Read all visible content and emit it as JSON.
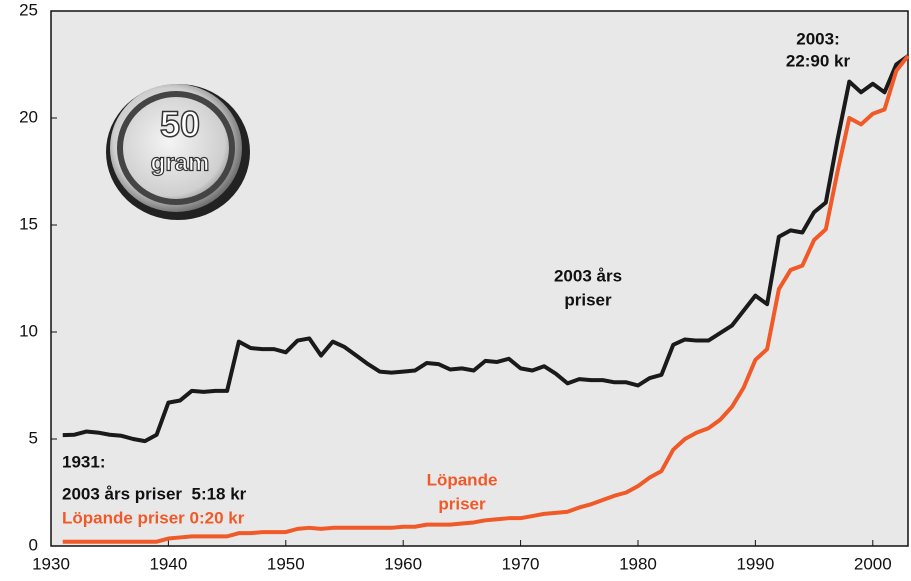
{
  "chart_data": {
    "type": "line",
    "x": [
      1931,
      1932,
      1933,
      1934,
      1935,
      1936,
      1937,
      1938,
      1939,
      1940,
      1941,
      1942,
      1943,
      1944,
      1945,
      1946,
      1947,
      1948,
      1949,
      1950,
      1951,
      1952,
      1953,
      1954,
      1955,
      1956,
      1957,
      1958,
      1959,
      1960,
      1961,
      1962,
      1963,
      1964,
      1965,
      1966,
      1967,
      1968,
      1969,
      1970,
      1971,
      1972,
      1973,
      1974,
      1975,
      1976,
      1977,
      1978,
      1979,
      1980,
      1981,
      1982,
      1983,
      1984,
      1985,
      1986,
      1987,
      1988,
      1989,
      1990,
      1991,
      1992,
      1993,
      1994,
      1995,
      1996,
      1997,
      1998,
      1999,
      2000,
      2001,
      2002,
      2003
    ],
    "series": [
      {
        "name": "2003 års priser",
        "color": "#1a1a1a",
        "values": [
          5.18,
          5.2,
          5.35,
          5.3,
          5.2,
          5.15,
          5.0,
          4.9,
          5.2,
          6.7,
          6.8,
          7.25,
          7.2,
          7.25,
          7.25,
          9.55,
          9.25,
          9.2,
          9.2,
          9.05,
          9.6,
          9.7,
          8.9,
          9.55,
          9.3,
          8.9,
          8.5,
          8.15,
          8.1,
          8.15,
          8.2,
          8.55,
          8.5,
          8.25,
          8.3,
          8.2,
          8.65,
          8.6,
          8.75,
          8.3,
          8.2,
          8.4,
          8.05,
          7.6,
          7.8,
          7.75,
          7.75,
          7.65,
          7.65,
          7.5,
          7.85,
          8.0,
          9.4,
          9.65,
          9.6,
          9.6,
          9.95,
          10.3,
          11.0,
          11.7,
          11.3,
          14.45,
          14.75,
          14.65,
          15.6,
          16.05,
          19.0,
          21.7,
          21.2,
          21.6,
          21.2,
          22.5,
          22.9
        ]
      },
      {
        "name": "Löpande priser",
        "color": "#f05a28",
        "values": [
          0.2,
          0.2,
          0.2,
          0.2,
          0.2,
          0.2,
          0.2,
          0.2,
          0.2,
          0.35,
          0.4,
          0.45,
          0.45,
          0.45,
          0.45,
          0.6,
          0.6,
          0.65,
          0.65,
          0.65,
          0.8,
          0.85,
          0.8,
          0.85,
          0.85,
          0.85,
          0.85,
          0.85,
          0.85,
          0.9,
          0.9,
          1.0,
          1.0,
          1.0,
          1.05,
          1.1,
          1.2,
          1.25,
          1.3,
          1.3,
          1.4,
          1.5,
          1.55,
          1.6,
          1.8,
          1.95,
          2.15,
          2.35,
          2.5,
          2.8,
          3.2,
          3.5,
          4.5,
          5.0,
          5.3,
          5.5,
          5.9,
          6.5,
          7.4,
          8.7,
          9.2,
          12.0,
          12.9,
          13.1,
          14.3,
          14.8,
          17.5,
          20.0,
          19.7,
          20.2,
          20.4,
          22.2,
          22.9
        ]
      }
    ],
    "xlim": [
      1930,
      2003
    ],
    "xticks": [
      1930,
      1940,
      1950,
      1960,
      1970,
      1980,
      1990,
      2000
    ],
    "ylim": [
      0,
      25
    ],
    "yticks": [
      0,
      5,
      10,
      15,
      20,
      25
    ],
    "grid": false,
    "annotations": [
      "2003:",
      "22:90 kr",
      "2003 års",
      "priser",
      "Löpande",
      "priser",
      "1931:",
      "2003 års priser  5:18 kr",
      "Löpande priser 0:20 kr",
      "50",
      "gram"
    ]
  }
}
